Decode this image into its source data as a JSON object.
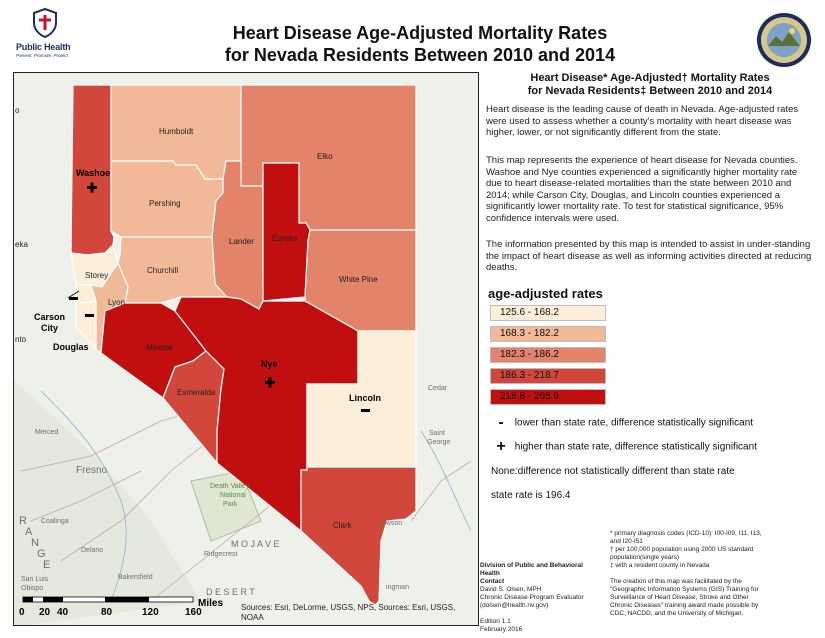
{
  "logo": {
    "name": "Public Health",
    "tagline": "Prevent. Promote. Protect."
  },
  "title": [
    "Heart Disease Age-Adjusted Mortality Rates",
    "for Nevada Residents Between 2010 and 2014"
  ],
  "panel": {
    "title": [
      "Heart Disease* Age-Adjusted† Mortality Rates",
      "for Nevada Residents‡ Between 2010 and 2014"
    ],
    "paragraphs": [
      "Heart disease is the leading cause of death in Nevada. Age-adjusted rates were used to assess whether a county's mortality with heart disease was higher, lower, or not significantly different from the state.",
      "This map represents the experience of heart disease for Nevada counties. Washoe and Nye counties experienced a significantly higher mortality rate due to heart disease-related mortalities than the state between 2010 and 2014; while Carson City, Douglas, and Lincoln counties experienced a significantly lower mortality rate. To test for statistical significance, 95% confidence intervals were used.",
      "The information presented by this map is intended to assist in under-standing the impact of heart disease as well as informing activities directed at reducing deaths."
    ]
  },
  "legend": {
    "title": "age-adjusted rates",
    "classes": [
      {
        "range": "125.6 - 168.2",
        "color": "#fdeed9"
      },
      {
        "range": "168.3 - 182.2",
        "color": "#f2b999"
      },
      {
        "range": "182.3 - 186.2",
        "color": "#e2836a"
      },
      {
        "range": "186.3 - 218.7",
        "color": "#d2473b"
      },
      {
        "range": "218.8 - 265.9",
        "color": "#c10f10"
      }
    ],
    "lower_symbol": "-",
    "lower_text": "lower than state rate, difference statistically significant",
    "higher_symbol": "+",
    "higher_text": "higher than state rate, difference statistically significant",
    "none_text": "None:difference not statistically different than state rate",
    "state_rate": "state rate is 196.4"
  },
  "counties": {
    "humboldt": "Humboldt",
    "elko": "Elko",
    "washoe": "Washoe",
    "pershing": "Pershing",
    "lander": "Lander",
    "eureka": "Eureka",
    "churchill": "Churchill",
    "white_pine": "White Pine",
    "storey": "Storey",
    "lyon": "Lyon",
    "carson_city": [
      "Carson",
      "City"
    ],
    "douglas": "Douglas",
    "mineral": "Mineral",
    "nye": "Nye",
    "esmeralda": "Esmeralda",
    "lincoln": "Lincoln",
    "clark": "Clark"
  },
  "basemap_labels": {
    "merced": "Merced",
    "fresno": "Fresno",
    "coalinga": "Coalinga",
    "delano": "Delano",
    "bakersfield": "Bakersfield",
    "san_luis_obispo": [
      "San Luis",
      "Obispo"
    ],
    "ridgecrest": "Ridgecrest",
    "mojave": "M O J A V E",
    "desert": "D E S E R T",
    "death_valley": [
      "Death Valley",
      "National",
      "Park"
    ],
    "cedar": "Cedar",
    "saint_george": [
      "Saint",
      "George"
    ],
    "range": [
      "R",
      "A",
      "N",
      "G",
      "E"
    ],
    "bullhead": "ingman",
    "lawson": "Lawson",
    "nto": "nto",
    "eka": "eka",
    "o": "o"
  },
  "scale_bar": {
    "ticks": [
      "0",
      "20",
      "40",
      "80",
      "120",
      "160"
    ],
    "unit": "Miles"
  },
  "sources": "Sources: Esri, DeLorme, USGS, NPS, Sources: Esri, USGS, NOAA",
  "contact": [
    "Division of Public and Behavioral Health",
    "Contact",
    "David S. Olsen, MPH",
    "Chronic Disease Program Evaluator",
    "(dolsen@health.nv.gov)",
    "",
    "Edition 1.1",
    "February 2016"
  ],
  "footnotes": [
    "* primary diagnosis codes (ICD-10): I00-I09, I11, I13,",
    "and I20-I51",
    "† per 100,000 population using 2000 US standard",
    "population(single years)",
    "‡ with a resident county in Nevada",
    "",
    "The creation of this map was facilitated by the",
    "\"Geographic Information Systems (GIS) Training for",
    "Surveillance of Heart Disease, Stroke and Other",
    "Chronic Diseases\" training award made possible by",
    "CDC, NACDD, and the University of Michigan."
  ],
  "colors": {
    "title_blue": "#1c2f5a",
    "background": "#eef0ea",
    "county_border": "#ffffff"
  }
}
